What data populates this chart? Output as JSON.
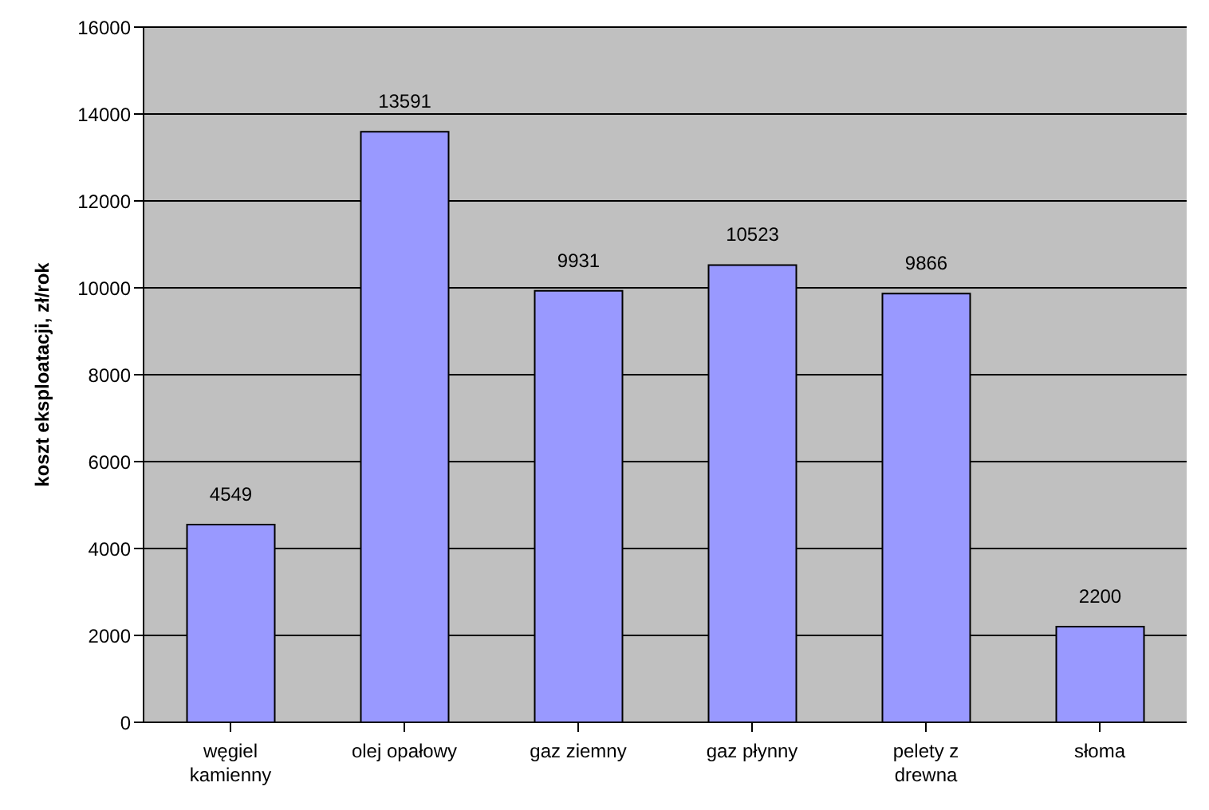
{
  "chart_data": {
    "type": "bar",
    "ylabel": "koszt eksploatacji, zł/rok",
    "categories": [
      "węgiel kamienny",
      "olej opałowy",
      "gaz ziemny",
      "gaz płynny",
      "pelety z drewna",
      "słoma"
    ],
    "values": [
      4549,
      13591,
      9931,
      10523,
      9866,
      2200
    ],
    "color": "#9999ff",
    "ylim": [
      0,
      16000
    ],
    "yticks": [
      0,
      2000,
      4000,
      6000,
      8000,
      10000,
      12000,
      14000,
      16000
    ],
    "grid": "y",
    "data_labels": true,
    "legend": false
  }
}
